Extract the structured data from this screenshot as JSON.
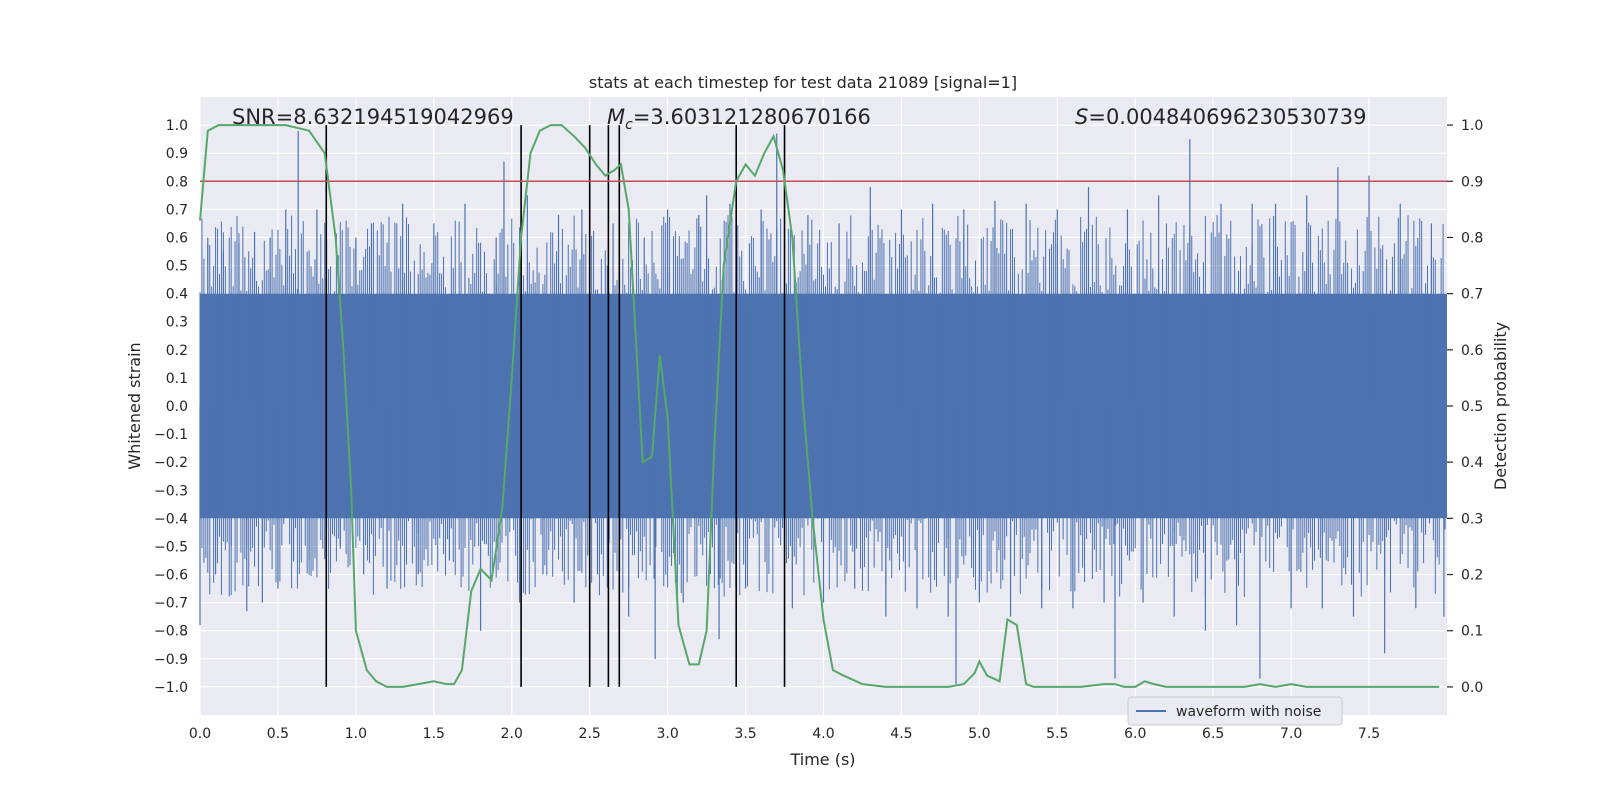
{
  "chart_data": {
    "type": "line",
    "title": "stats at each timestep for test data 21089 [signal=1]",
    "xlabel": "Time (s)",
    "ylabel_left": "Whitened strain",
    "ylabel_right": "Detection probability",
    "xlim": [
      0.0,
      8.0
    ],
    "ylim_left": [
      -1.1,
      1.1
    ],
    "ylim_right": [
      -0.05,
      1.05
    ],
    "x_ticks": [
      "0.0",
      "0.5",
      "1.0",
      "1.5",
      "2.0",
      "2.5",
      "3.0",
      "3.5",
      "4.0",
      "4.5",
      "5.0",
      "5.5",
      "6.0",
      "6.5",
      "7.0",
      "7.5"
    ],
    "x_tick_values": [
      0.0,
      0.5,
      1.0,
      1.5,
      2.0,
      2.5,
      3.0,
      3.5,
      4.0,
      4.5,
      5.0,
      5.5,
      6.0,
      6.5,
      7.0,
      7.5
    ],
    "y_left_ticks": [
      "1.0",
      "0.9",
      "0.8",
      "0.7",
      "0.6",
      "0.5",
      "0.4",
      "0.3",
      "0.2",
      "0.1",
      "0.0",
      "−0.1",
      "−0.2",
      "−0.3",
      "−0.4",
      "−0.5",
      "−0.6",
      "−0.7",
      "−0.8",
      "−0.9",
      "−1.0"
    ],
    "y_left_tick_values": [
      1.0,
      0.9,
      0.8,
      0.7,
      0.6,
      0.5,
      0.4,
      0.3,
      0.2,
      0.1,
      0.0,
      -0.1,
      -0.2,
      -0.3,
      -0.4,
      -0.5,
      -0.6,
      -0.7,
      -0.8,
      -0.9,
      -1.0
    ],
    "y_right_ticks": [
      "1.0",
      "0.9",
      "0.8",
      "0.7",
      "0.6",
      "0.5",
      "0.4",
      "0.3",
      "0.2",
      "0.1",
      "0.0"
    ],
    "y_right_tick_values": [
      1.0,
      0.9,
      0.8,
      0.7,
      0.6,
      0.5,
      0.4,
      0.3,
      0.2,
      0.1,
      0.0
    ],
    "grid": true,
    "annotations": {
      "snr": "SNR=8.632194519042969",
      "mc_symbol": "M",
      "mc_sub": "c",
      "mc_value": "=3.603121280670166",
      "s_symbol": "S",
      "s_value": "=0.004840696230530739"
    },
    "threshold": {
      "value": 0.9,
      "axis": "right",
      "color": "#c44e52"
    },
    "vertical_lines": [
      0.81,
      2.06,
      2.5,
      2.62,
      2.69,
      3.44,
      3.75
    ],
    "vertical_line_range_left": [
      -1.0,
      1.0
    ],
    "waveform": {
      "name": "waveform with noise",
      "color": "#4c72b0",
      "description_band": [
        -0.4,
        0.4
      ],
      "peak_samples": [
        [
          0.0,
          -0.78
        ],
        [
          0.05,
          0.6
        ],
        [
          0.1,
          -0.6
        ],
        [
          0.15,
          0.55
        ],
        [
          0.2,
          -0.5
        ],
        [
          0.25,
          0.58
        ],
        [
          0.3,
          -0.73
        ],
        [
          0.35,
          0.62
        ],
        [
          0.4,
          -0.7
        ],
        [
          0.45,
          0.6
        ],
        [
          0.5,
          -0.65
        ],
        [
          0.55,
          0.7
        ],
        [
          0.6,
          -0.55
        ],
        [
          0.63,
          0.98
        ],
        [
          0.7,
          -0.55
        ],
        [
          0.75,
          0.7
        ],
        [
          0.81,
          0.99
        ],
        [
          0.9,
          -0.5
        ],
        [
          1.0,
          0.6
        ],
        [
          1.05,
          -0.6
        ],
        [
          1.1,
          0.65
        ],
        [
          1.2,
          -0.65
        ],
        [
          1.3,
          0.72
        ],
        [
          1.4,
          -0.6
        ],
        [
          1.5,
          0.65
        ],
        [
          1.6,
          -0.55
        ],
        [
          1.7,
          0.72
        ],
        [
          1.8,
          -0.8
        ],
        [
          1.9,
          0.6
        ],
        [
          1.95,
          0.87
        ],
        [
          2.05,
          -0.7
        ],
        [
          2.1,
          0.75
        ],
        [
          2.2,
          -0.6
        ],
        [
          2.3,
          0.68
        ],
        [
          2.4,
          -0.7
        ],
        [
          2.45,
          0.7
        ],
        [
          2.55,
          -0.6
        ],
        [
          2.65,
          0.65
        ],
        [
          2.75,
          -0.75
        ],
        [
          2.85,
          0.6
        ],
        [
          2.92,
          -0.9
        ],
        [
          3.0,
          0.7
        ],
        [
          3.1,
          -0.7
        ],
        [
          3.2,
          0.68
        ],
        [
          3.25,
          0.75
        ],
        [
          3.33,
          -0.83
        ],
        [
          3.4,
          0.72
        ],
        [
          3.5,
          -0.65
        ],
        [
          3.6,
          0.7
        ],
        [
          3.7,
          0.97
        ],
        [
          3.8,
          -0.72
        ],
        [
          3.9,
          0.68
        ],
        [
          4.0,
          -0.7
        ],
        [
          4.1,
          0.65
        ],
        [
          4.2,
          -0.65
        ],
        [
          4.3,
          0.78
        ],
        [
          4.4,
          -0.75
        ],
        [
          4.5,
          0.7
        ],
        [
          4.6,
          -0.72
        ],
        [
          4.7,
          0.72
        ],
        [
          4.8,
          -0.75
        ],
        [
          4.85,
          -0.99
        ],
        [
          4.9,
          0.7
        ],
        [
          5.0,
          -0.7
        ],
        [
          5.1,
          0.73
        ],
        [
          5.2,
          -0.75
        ],
        [
          5.3,
          0.72
        ],
        [
          5.4,
          -0.72
        ],
        [
          5.5,
          0.7
        ],
        [
          5.6,
          -0.72
        ],
        [
          5.7,
          0.78
        ],
        [
          5.8,
          -0.7
        ],
        [
          5.87,
          -0.97
        ],
        [
          5.95,
          0.7
        ],
        [
          6.05,
          -0.7
        ],
        [
          6.15,
          0.75
        ],
        [
          6.25,
          -0.75
        ],
        [
          6.35,
          0.95
        ],
        [
          6.45,
          -0.8
        ],
        [
          6.55,
          0.72
        ],
        [
          6.65,
          -0.78
        ],
        [
          6.75,
          0.72
        ],
        [
          6.8,
          -0.97
        ],
        [
          6.9,
          0.72
        ],
        [
          7.0,
          -0.72
        ],
        [
          7.1,
          0.75
        ],
        [
          7.2,
          -0.72
        ],
        [
          7.3,
          0.85
        ],
        [
          7.4,
          -0.75
        ],
        [
          7.5,
          0.82
        ],
        [
          7.6,
          -0.88
        ],
        [
          7.7,
          0.72
        ],
        [
          7.8,
          -0.72
        ],
        [
          7.9,
          0.65
        ],
        [
          7.98,
          -0.75
        ]
      ]
    },
    "detection_probability": {
      "color": "#55a868",
      "points": [
        [
          0.0,
          0.83
        ],
        [
          0.05,
          0.99
        ],
        [
          0.12,
          1.0
        ],
        [
          0.25,
          1.0
        ],
        [
          0.4,
          1.0
        ],
        [
          0.55,
          1.0
        ],
        [
          0.7,
          0.99
        ],
        [
          0.8,
          0.95
        ],
        [
          0.87,
          0.8
        ],
        [
          0.92,
          0.6
        ],
        [
          0.97,
          0.35
        ],
        [
          1.0,
          0.1
        ],
        [
          1.07,
          0.03
        ],
        [
          1.13,
          0.01
        ],
        [
          1.2,
          0.0
        ],
        [
          1.3,
          0.0
        ],
        [
          1.4,
          0.005
        ],
        [
          1.5,
          0.01
        ],
        [
          1.58,
          0.005
        ],
        [
          1.63,
          0.005
        ],
        [
          1.68,
          0.03
        ],
        [
          1.74,
          0.17
        ],
        [
          1.8,
          0.21
        ],
        [
          1.87,
          0.19
        ],
        [
          1.94,
          0.32
        ],
        [
          2.0,
          0.55
        ],
        [
          2.06,
          0.8
        ],
        [
          2.12,
          0.95
        ],
        [
          2.18,
          0.99
        ],
        [
          2.25,
          1.0
        ],
        [
          2.32,
          1.0
        ],
        [
          2.4,
          0.98
        ],
        [
          2.47,
          0.96
        ],
        [
          2.54,
          0.93
        ],
        [
          2.6,
          0.91
        ],
        [
          2.66,
          0.92
        ],
        [
          2.7,
          0.93
        ],
        [
          2.75,
          0.85
        ],
        [
          2.8,
          0.6
        ],
        [
          2.84,
          0.4
        ],
        [
          2.9,
          0.41
        ],
        [
          2.95,
          0.59
        ],
        [
          3.0,
          0.48
        ],
        [
          3.07,
          0.11
        ],
        [
          3.14,
          0.04
        ],
        [
          3.2,
          0.04
        ],
        [
          3.25,
          0.1
        ],
        [
          3.3,
          0.43
        ],
        [
          3.36,
          0.75
        ],
        [
          3.44,
          0.9
        ],
        [
          3.5,
          0.93
        ],
        [
          3.56,
          0.91
        ],
        [
          3.62,
          0.95
        ],
        [
          3.68,
          0.98
        ],
        [
          3.74,
          0.92
        ],
        [
          3.8,
          0.8
        ],
        [
          3.87,
          0.5
        ],
        [
          3.93,
          0.3
        ],
        [
          4.0,
          0.12
        ],
        [
          4.06,
          0.03
        ],
        [
          4.13,
          0.02
        ],
        [
          4.25,
          0.005
        ],
        [
          4.4,
          0.0
        ],
        [
          4.6,
          0.0
        ],
        [
          4.8,
          0.0
        ],
        [
          4.9,
          0.005
        ],
        [
          4.97,
          0.025
        ],
        [
          5.0,
          0.045
        ],
        [
          5.05,
          0.02
        ],
        [
          5.13,
          0.01
        ],
        [
          5.18,
          0.12
        ],
        [
          5.24,
          0.11
        ],
        [
          5.3,
          0.005
        ],
        [
          5.35,
          0.0
        ],
        [
          5.5,
          0.0
        ],
        [
          5.65,
          0.0
        ],
        [
          5.8,
          0.005
        ],
        [
          5.87,
          0.005
        ],
        [
          5.93,
          0.0
        ],
        [
          6.0,
          0.0
        ],
        [
          6.06,
          0.01
        ],
        [
          6.12,
          0.005
        ],
        [
          6.2,
          0.0
        ],
        [
          6.4,
          0.0
        ],
        [
          6.6,
          0.0
        ],
        [
          6.7,
          0.0
        ],
        [
          6.8,
          0.005
        ],
        [
          6.9,
          0.0
        ],
        [
          7.0,
          0.005
        ],
        [
          7.1,
          0.0
        ],
        [
          7.3,
          0.0
        ],
        [
          7.5,
          0.0
        ],
        [
          7.7,
          0.0
        ],
        [
          7.85,
          0.0
        ],
        [
          7.95,
          0.0
        ]
      ]
    },
    "legend": {
      "position": "lower-right",
      "entries": [
        "waveform with noise"
      ]
    }
  }
}
